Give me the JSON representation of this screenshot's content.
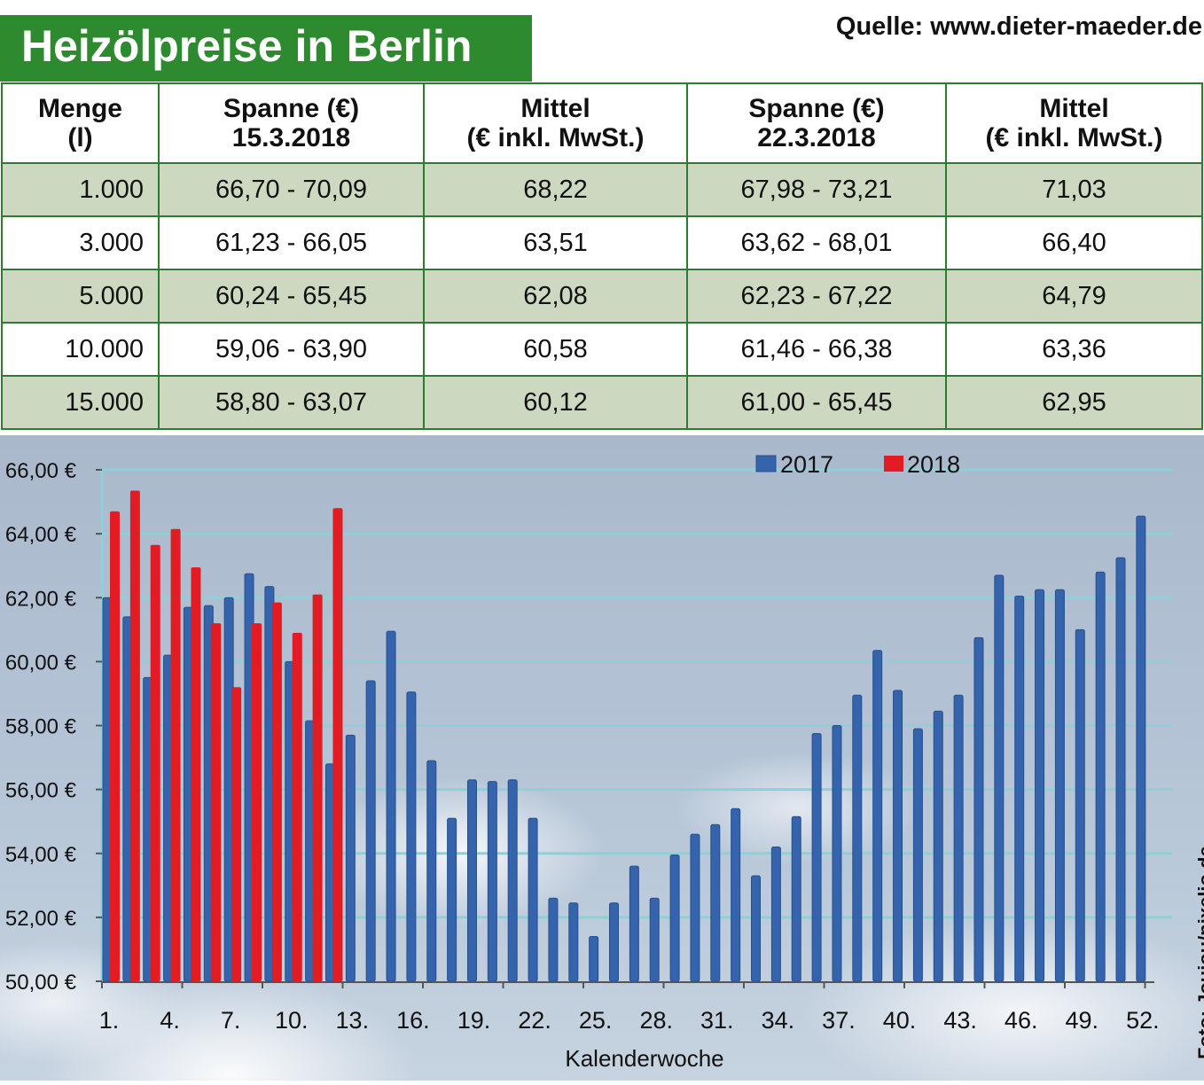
{
  "title": "Heizölpreise in Berlin",
  "source": "Quelle: www.dieter-maeder.de",
  "photo_credit": "Foto: Joujou/pixelio.de",
  "table": {
    "headers": [
      [
        "Menge",
        "(l)"
      ],
      [
        "Spanne (€)",
        "15.3.2018"
      ],
      [
        "Mittel",
        "(€ inkl. MwSt.)"
      ],
      [
        "Spanne (€)",
        "22.3.2018"
      ],
      [
        "Mittel",
        "(€ inkl. MwSt.)"
      ]
    ],
    "rows": [
      [
        "1.000",
        "66,70 - 70,09",
        "68,22",
        "67,98 - 73,21",
        "71,03"
      ],
      [
        "3.000",
        "61,23 - 66,05",
        "63,51",
        "63,62 - 68,01",
        "66,40"
      ],
      [
        "5.000",
        "60,24 - 65,45",
        "62,08",
        "62,23 - 67,22",
        "64,79"
      ],
      [
        "10.000",
        "59,06 - 63,90",
        "60,58",
        "61,46 - 66,38",
        "63,36"
      ],
      [
        "15.000",
        "58,80 - 63,07",
        "60,12",
        "61,00 - 65,45",
        "62,95"
      ]
    ]
  },
  "chart_data": {
    "type": "bar",
    "xlabel": "Kalenderwoche",
    "ylim": [
      50,
      66
    ],
    "y_ticks": [
      "50,00 €",
      "52,00 €",
      "54,00 €",
      "56,00 €",
      "58,00 €",
      "60,00 €",
      "62,00 €",
      "64,00 €",
      "66,00 €"
    ],
    "x_ticks": [
      "1.",
      "4.",
      "7.",
      "10.",
      "13.",
      "16.",
      "19.",
      "22.",
      "25.",
      "28.",
      "31.",
      "34.",
      "37.",
      "40.",
      "43.",
      "46.",
      "49.",
      "52."
    ],
    "grid": true,
    "legend": "top",
    "series": [
      {
        "name": "2017",
        "color": "#3564ad",
        "values": [
          62.0,
          61.4,
          59.5,
          60.2,
          61.7,
          61.75,
          62.0,
          62.75,
          62.35,
          60.0,
          58.15,
          56.8,
          57.7,
          59.4,
          60.95,
          59.05,
          56.9,
          55.1,
          56.3,
          56.25,
          56.3,
          55.1,
          52.6,
          52.45,
          51.4,
          52.45,
          53.6,
          52.6,
          53.95,
          54.6,
          54.9,
          55.4,
          53.3,
          54.2,
          55.15,
          57.75,
          58.0,
          58.95,
          60.35,
          59.1,
          57.9,
          58.45,
          58.95,
          60.75,
          62.7,
          62.05,
          62.25,
          62.25,
          61.0,
          62.8,
          63.25,
          64.55
        ]
      },
      {
        "name": "2018",
        "color": "#e31b23",
        "values": [
          64.7,
          65.35,
          63.65,
          64.15,
          62.95,
          61.2,
          59.2,
          61.2,
          61.85,
          60.9,
          62.1,
          64.8
        ]
      }
    ]
  }
}
